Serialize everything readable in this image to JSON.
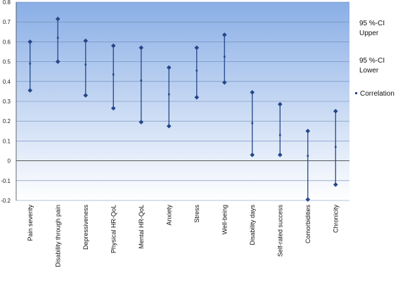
{
  "chart_data": {
    "type": "error-bar",
    "title": "",
    "xlabel": "",
    "ylabel": "",
    "ylim": [
      -0.2,
      0.8
    ],
    "yticks": [
      -0.2,
      -0.1,
      0,
      0.1,
      0.2,
      0.3,
      0.4,
      0.5,
      0.6,
      0.7,
      0.8
    ],
    "ytick_labels": [
      "-0.2",
      "-0.1",
      "0",
      "0.1",
      "0.2",
      "0.3",
      "0.4",
      "0.5",
      "0.6",
      "0.7",
      "0.8"
    ],
    "grid": true,
    "legend_position": "right",
    "categories": [
      "Pain severity",
      "Disability through pain",
      "Depressiveness",
      "Physical HR-QoL",
      "Mental HR-QoL",
      "Anxiety",
      "Stress",
      "Well-being",
      "Disability days",
      "Self-rated success",
      "Comorbidities",
      "Chronicity"
    ],
    "series": [
      {
        "name": "95 %-CI Upper",
        "values": [
          0.6,
          0.715,
          0.605,
          0.58,
          0.57,
          0.47,
          0.57,
          0.635,
          0.345,
          0.285,
          0.15,
          0.25
        ]
      },
      {
        "name": "95 %-CI Lower",
        "values": [
          0.355,
          0.5,
          0.33,
          0.265,
          0.195,
          0.175,
          0.32,
          0.395,
          0.03,
          0.03,
          -0.195,
          -0.12
        ]
      },
      {
        "name": "Correlation",
        "values": [
          0.49,
          0.62,
          0.485,
          0.435,
          0.405,
          0.335,
          0.455,
          0.525,
          0.19,
          0.13,
          0.025,
          0.07
        ]
      }
    ],
    "legend": [
      {
        "line1": "95 %-CI",
        "line2": "Upper"
      },
      {
        "line1": "95 %-CI",
        "line2": "Lower"
      },
      {
        "line1": "Correlation",
        "line2": ""
      }
    ],
    "colors": {
      "series": "#24478a",
      "gradient_top": "#89aee6",
      "gradient_bottom": "#ffffff",
      "grid": "#6e88b8",
      "axis": "#444444"
    }
  }
}
